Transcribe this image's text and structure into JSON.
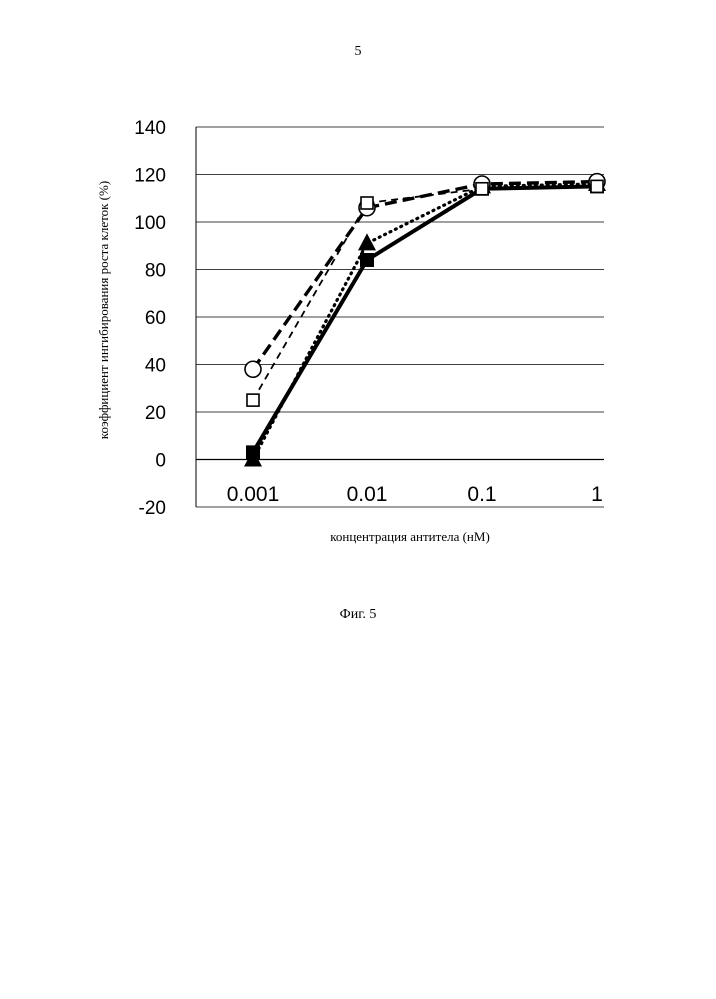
{
  "page": {
    "number": "5",
    "caption": "Фиг. 5"
  },
  "chart_data": {
    "type": "line",
    "xscale": "log",
    "categories": [
      "0.001",
      "0.01",
      "0.1",
      "1"
    ],
    "x": [
      0.001,
      0.01,
      0.1,
      1
    ],
    "ylabel": "коэффициент ингибирования роста клеток (%)",
    "xlabel": "концентрация антитела (нМ)",
    "ylim": [
      -20,
      140
    ],
    "yticks": [
      -20,
      0,
      20,
      40,
      60,
      80,
      100,
      120,
      140
    ],
    "grid": true,
    "series": [
      {
        "values": [
          3,
          84,
          114,
          115
        ],
        "line": "solid",
        "marker": "filled-square",
        "color": "#000000"
      },
      {
        "values": [
          0,
          91,
          115,
          116
        ],
        "line": "dotted",
        "marker": "filled-triangle",
        "color": "#000000"
      },
      {
        "values": [
          38,
          106,
          116,
          117
        ],
        "line": "dashed-thick",
        "marker": "open-circle",
        "color": "#000000"
      },
      {
        "values": [
          25,
          108,
          114,
          115
        ],
        "line": "dashed-thin",
        "marker": "open-square",
        "color": "#000000"
      }
    ]
  }
}
